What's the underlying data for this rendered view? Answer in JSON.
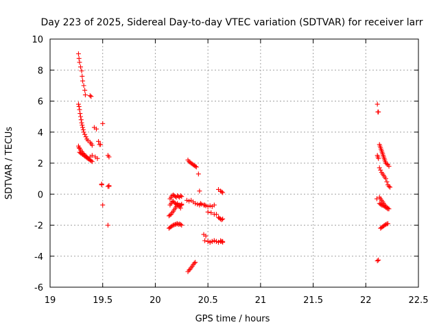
{
  "chart_data": {
    "type": "scatter",
    "title": "Day 223 of 2025, Sidereal Day-to-day VTEC variation (SDTVAR) for receiver larr",
    "xlabel": "GPS time / hours",
    "ylabel": "SDTVAR / TECUs",
    "xlim": [
      19,
      22.5
    ],
    "ylim": [
      -6,
      10
    ],
    "xticks": [
      "19",
      "19.5",
      "20",
      "20.5",
      "21",
      "21.5",
      "22",
      "22.5"
    ],
    "yticks": [
      "-6",
      "-4",
      "-2",
      "0",
      "2",
      "4",
      "6",
      "8",
      "10"
    ],
    "grid": true,
    "marker": "+",
    "color": "#ff0000",
    "series": [
      {
        "name": "SDTVAR",
        "x": [
          19.27,
          19.275,
          19.28,
          19.29,
          19.3,
          19.305,
          19.31,
          19.32,
          19.33,
          19.335,
          19.38,
          19.39,
          19.27,
          19.275,
          19.28,
          19.285,
          19.29,
          19.295,
          19.3,
          19.305,
          19.31,
          19.315,
          19.32,
          19.33,
          19.34,
          19.35,
          19.36,
          19.38,
          19.39,
          19.4,
          19.42,
          19.44,
          19.46,
          19.48,
          19.5,
          19.55,
          19.56,
          19.27,
          19.275,
          19.28,
          19.29,
          19.3,
          19.31,
          19.32,
          19.33,
          19.34,
          19.35,
          19.36,
          19.37,
          19.38,
          19.39,
          19.4,
          19.28,
          19.29,
          19.3,
          19.31,
          19.32,
          19.33,
          19.34,
          19.35,
          19.36,
          19.38,
          19.4,
          19.43,
          19.45,
          19.47,
          19.49,
          19.5,
          19.55,
          19.56,
          19.49,
          19.55,
          19.56,
          20.13,
          20.14,
          20.15,
          20.16,
          20.17,
          20.18,
          20.19,
          20.2,
          20.21,
          20.22,
          20.23,
          20.24,
          20.25,
          20.13,
          20.14,
          20.15,
          20.16,
          20.17,
          20.18,
          20.19,
          20.2,
          20.21,
          20.22,
          20.23,
          20.24,
          20.25,
          20.14,
          20.15,
          20.16,
          20.17,
          20.18,
          20.19,
          20.2,
          20.21,
          20.22,
          20.23,
          20.24,
          20.25,
          20.14,
          20.15,
          20.16,
          20.17,
          20.18,
          20.19,
          20.2,
          20.21,
          20.22,
          20.23,
          20.24,
          20.25,
          20.31,
          20.32,
          20.33,
          20.34,
          20.35,
          20.36,
          20.37,
          20.38,
          20.39,
          20.3,
          20.32,
          20.34,
          20.36,
          20.38,
          20.4,
          20.42,
          20.44,
          20.46,
          20.48,
          20.5,
          20.52,
          20.54,
          20.56,
          20.31,
          20.32,
          20.33,
          20.34,
          20.35,
          20.36,
          20.37,
          20.38,
          20.41,
          20.42,
          20.43,
          20.47,
          20.5,
          20.53,
          20.56,
          20.58,
          20.6,
          20.61,
          20.62,
          20.63,
          20.64,
          20.46,
          20.48,
          20.5,
          20.52,
          20.54,
          20.56,
          20.58,
          20.6,
          20.62,
          20.64,
          20.47,
          20.5,
          20.52,
          20.54,
          20.56,
          20.58,
          20.6,
          20.62,
          20.63,
          20.64,
          20.6,
          20.62,
          20.63,
          20.64,
          22.11,
          22.115,
          22.12,
          22.11,
          22.115,
          22.12,
          22.105,
          22.11,
          22.12,
          22.13,
          22.135,
          22.14,
          22.145,
          22.15,
          22.155,
          22.16,
          22.165,
          22.17,
          22.175,
          22.18,
          22.185,
          22.19,
          22.2,
          22.21,
          22.22,
          22.13,
          22.14,
          22.15,
          22.16,
          22.17,
          22.18,
          22.19,
          22.2,
          22.21,
          22.22,
          22.23,
          22.13,
          22.14,
          22.15,
          22.16,
          22.17,
          22.18,
          22.19,
          22.2,
          22.21,
          22.14,
          22.15,
          22.16,
          22.17,
          22.18,
          22.19,
          22.2,
          22.21,
          22.13,
          22.14,
          22.15,
          22.16,
          22.17,
          22.18,
          22.19,
          22.2,
          22.21,
          22.22
        ],
        "y": [
          9.05,
          8.75,
          8.5,
          8.2,
          7.95,
          7.6,
          7.3,
          7.0,
          6.7,
          6.4,
          6.35,
          6.3,
          5.8,
          5.65,
          5.45,
          5.2,
          5.0,
          4.8,
          4.6,
          4.45,
          4.3,
          4.15,
          4.0,
          3.85,
          3.7,
          3.55,
          3.45,
          3.35,
          3.25,
          3.15,
          4.3,
          4.2,
          3.4,
          3.2,
          4.55,
          2.5,
          2.4,
          3.1,
          3.0,
          2.95,
          2.85,
          2.75,
          2.65,
          2.6,
          2.5,
          2.45,
          2.4,
          2.3,
          2.25,
          2.2,
          2.15,
          2.1,
          2.7,
          2.65,
          2.6,
          2.55,
          2.5,
          2.45,
          2.4,
          2.35,
          2.3,
          2.4,
          2.5,
          2.4,
          2.3,
          3.2,
          0.6,
          -0.7,
          0.5,
          0.55,
          0.65,
          -2.0,
          0.5,
          -2.2,
          -2.15,
          -2.1,
          -2.05,
          -2.0,
          -1.98,
          -1.95,
          -1.92,
          -1.9,
          -1.95,
          -1.92,
          -1.95,
          -2.0,
          -1.4,
          -1.35,
          -1.3,
          -1.2,
          -1.1,
          -1.0,
          -0.9,
          -0.8,
          -0.7,
          -0.75,
          -0.8,
          -0.9,
          -0.7,
          -0.7,
          -0.6,
          -0.5,
          -0.45,
          -0.55,
          -0.6,
          -0.65,
          -0.6,
          -0.7,
          -0.7,
          -0.72,
          -0.65,
          -0.3,
          -0.2,
          -0.1,
          -0.05,
          -0.1,
          -0.15,
          -0.2,
          -0.1,
          -0.15,
          -0.2,
          -0.1,
          -0.15,
          2.2,
          2.1,
          2.05,
          2.0,
          1.95,
          1.9,
          1.85,
          1.8,
          1.75,
          -0.4,
          -0.45,
          -0.4,
          -0.5,
          -0.6,
          -0.65,
          -0.7,
          -0.65,
          -0.7,
          -0.75,
          -0.8,
          -0.75,
          -0.8,
          -0.7,
          -5.0,
          -4.9,
          -4.85,
          -4.75,
          -4.65,
          -4.55,
          -4.45,
          -4.4,
          1.3,
          0.2,
          -0.6,
          -0.7,
          -1.15,
          -1.2,
          -1.3,
          -1.3,
          -1.5,
          -1.55,
          -1.6,
          -1.65,
          -1.6,
          -2.6,
          -2.7,
          -3.05,
          -3.1,
          -3.05,
          -3.0,
          -3.05,
          -3.1,
          -3.05,
          -3.05,
          -3.0,
          -3.05,
          -3.1,
          -3.05,
          -3.0,
          -3.05,
          -3.1,
          -3.0,
          -3.05,
          -3.1,
          0.3,
          0.2,
          0.15,
          0.1,
          5.8,
          5.3,
          5.3,
          2.5,
          2.4,
          2.3,
          -0.3,
          -4.3,
          -4.25,
          3.2,
          3.1,
          3.0,
          2.9,
          2.8,
          2.7,
          2.6,
          2.5,
          2.4,
          2.3,
          2.2,
          2.1,
          2.0,
          1.95,
          1.9,
          1.8,
          1.7,
          1.55,
          1.4,
          1.3,
          1.2,
          1.1,
          1.0,
          0.8,
          0.6,
          0.5,
          0.45,
          -0.6,
          -0.65,
          -0.7,
          -0.72,
          -0.75,
          -0.8,
          -0.85,
          -0.9,
          -0.95,
          -2.2,
          -2.15,
          -2.1,
          -2.05,
          -2.0,
          -1.95,
          -1.92,
          -1.9,
          -0.2,
          -0.3,
          -0.4,
          -0.5,
          -0.6,
          -0.7,
          -0.8,
          -0.85,
          -0.9,
          -0.95
        ]
      }
    ]
  }
}
